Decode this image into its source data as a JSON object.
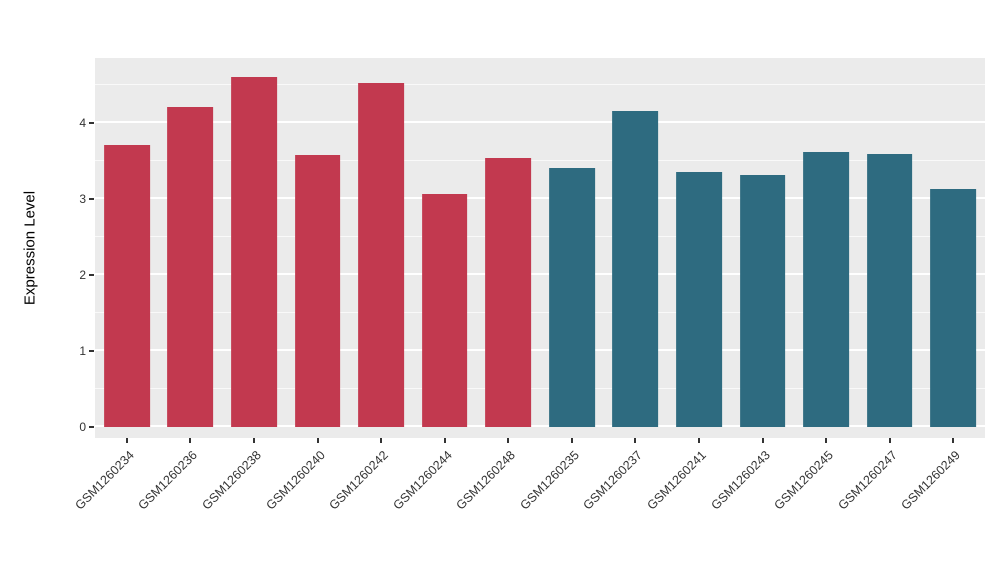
{
  "chart_data": {
    "type": "bar",
    "title": "",
    "xlabel": "",
    "ylabel": "Expression Level",
    "ylim": [
      -0.15,
      4.85
    ],
    "yticks": [
      0,
      1,
      2,
      3,
      4
    ],
    "minor_ticks": [
      0.5,
      1.5,
      2.5,
      3.5,
      4.5
    ],
    "grid": "on",
    "legend": "none",
    "categories": [
      "GSM1260234",
      "GSM1260236",
      "GSM1260238",
      "GSM1260240",
      "GSM1260242",
      "GSM1260244",
      "GSM1260248",
      "GSM1260235",
      "GSM1260237",
      "GSM1260241",
      "GSM1260243",
      "GSM1260245",
      "GSM1260247",
      "GSM1260249"
    ],
    "values": [
      3.7,
      4.2,
      4.6,
      3.57,
      4.52,
      3.06,
      3.54,
      3.4,
      4.15,
      3.35,
      3.31,
      3.62,
      3.59,
      3.13
    ],
    "bar_colors": [
      "#C2394F",
      "#C2394F",
      "#C2394F",
      "#C2394F",
      "#C2394F",
      "#C2394F",
      "#C2394F",
      "#2E6B80",
      "#2E6B80",
      "#2E6B80",
      "#2E6B80",
      "#2E6B80",
      "#2E6B80",
      "#2E6B80"
    ],
    "colors": {
      "group_red": "#C2394F",
      "group_teal": "#2E6B80",
      "panel_bg": "#EBEBEB",
      "gridline": "#FFFFFF",
      "tick_text": "#333333"
    },
    "bar_width_fraction": 0.72
  }
}
